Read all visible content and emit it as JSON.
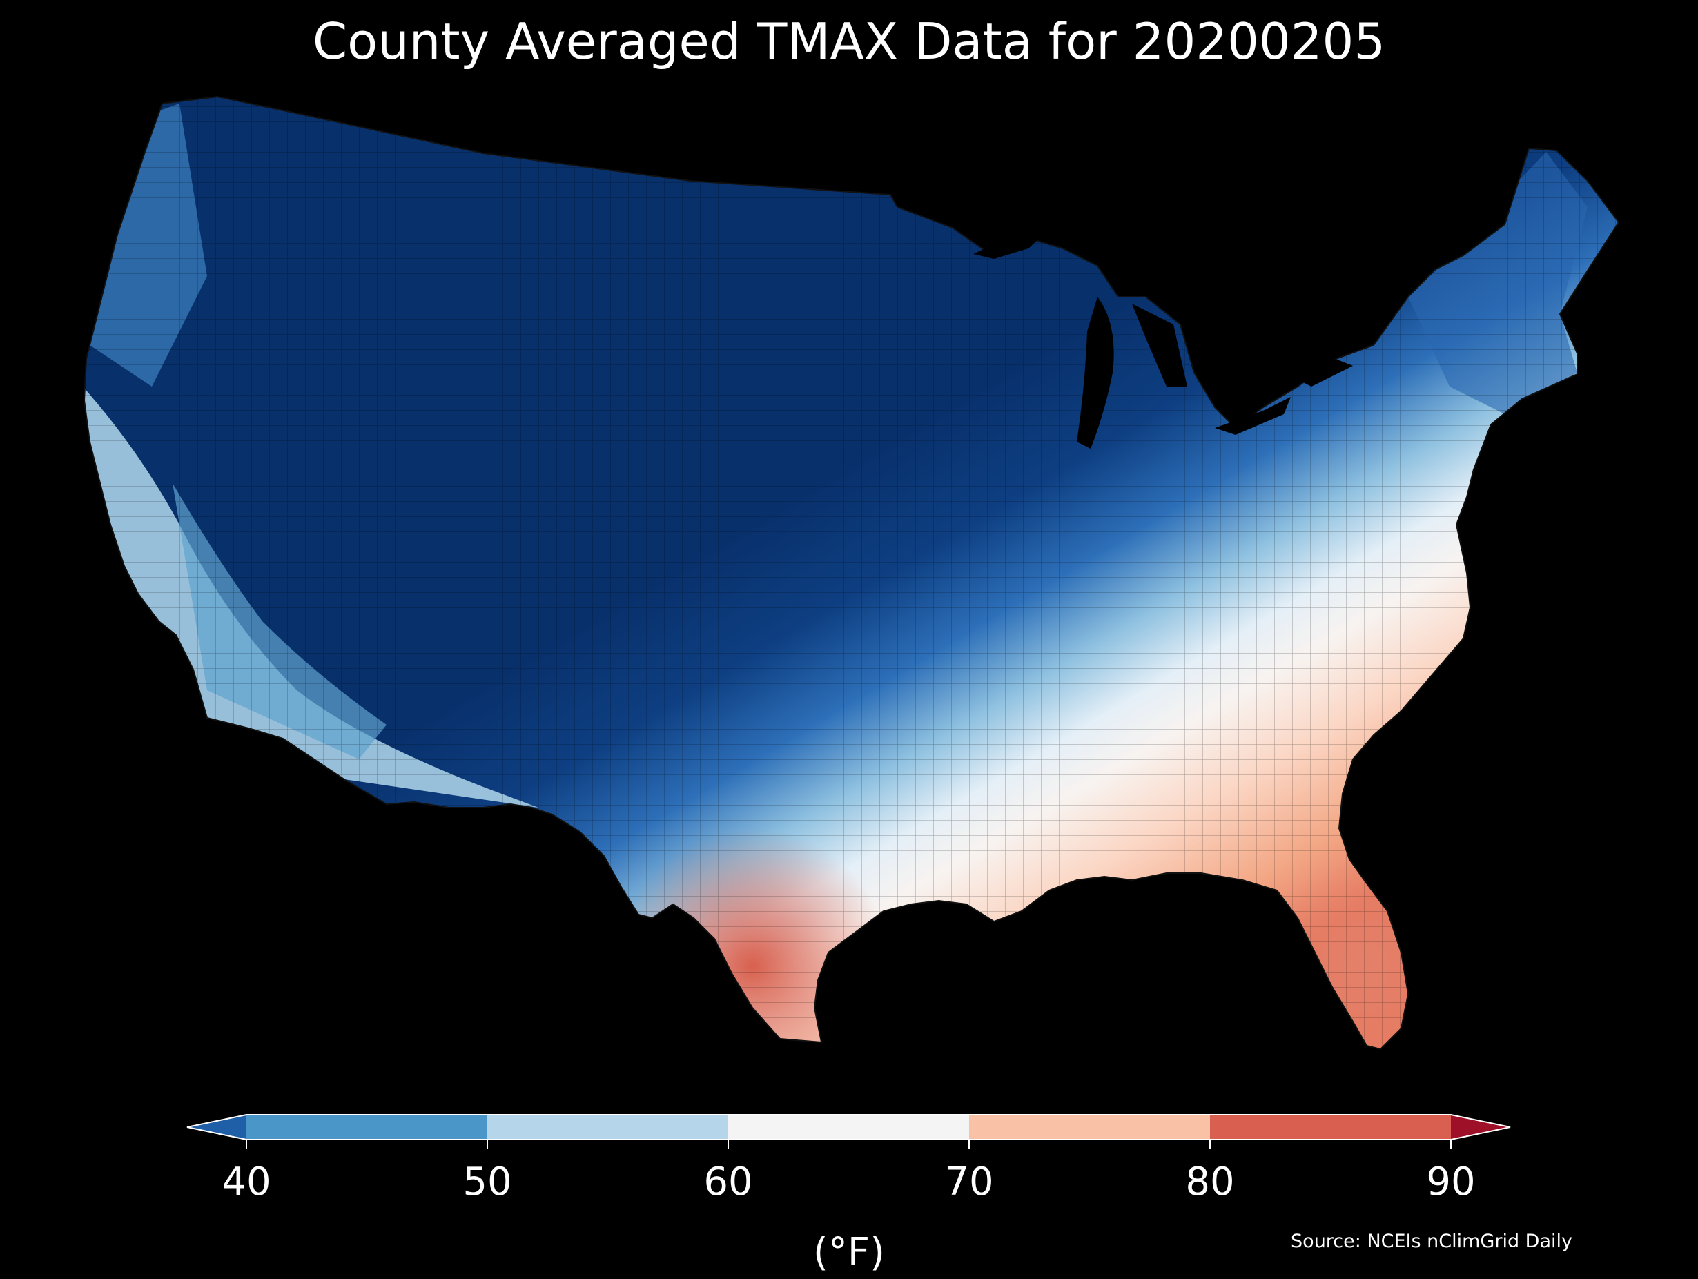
{
  "title": "County Averaged TMAX Data for 20200205",
  "legend": {
    "unit_label": "(°F)",
    "ticks": [
      "40",
      "50",
      "60",
      "70",
      "80",
      "90"
    ],
    "bins": [
      {
        "from": "below",
        "to": 40,
        "color": "#1f5fa8"
      },
      {
        "from": 40,
        "to": 50,
        "color": "#4a96c8"
      },
      {
        "from": 50,
        "to": 60,
        "color": "#b5d6ea"
      },
      {
        "from": 60,
        "to": 70,
        "color": "#f4f4f4"
      },
      {
        "from": 70,
        "to": 80,
        "color": "#f9c1a6"
      },
      {
        "from": 80,
        "to": 90,
        "color": "#d96050"
      },
      {
        "from": 90,
        "to": "above",
        "color": "#9e1028"
      }
    ]
  },
  "source": "Source: NCEIs nClimGrid Daily",
  "region_colors": {
    "very_cold": "#08306b",
    "cold": "#1c5aa6",
    "cool": "#4a96c8",
    "mild": "#b5d6ea",
    "neutral": "#f4f4f4",
    "warm": "#f9c1a6",
    "hot": "#d96050",
    "background": "#000000"
  }
}
